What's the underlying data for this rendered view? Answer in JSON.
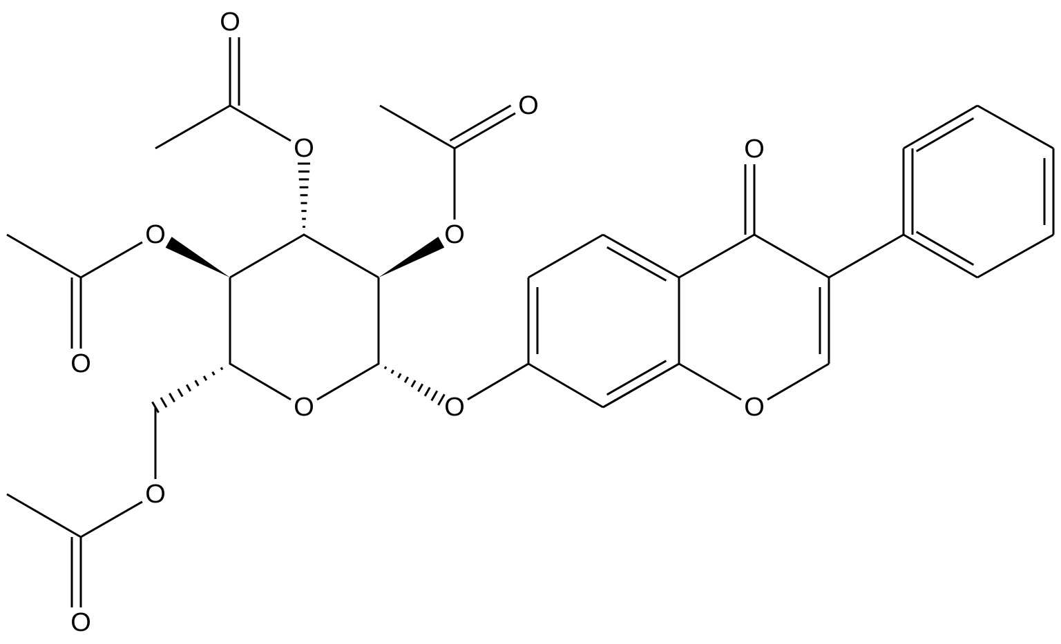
{
  "atoms": [
    {
      "label": "O"
    },
    {
      "label": "O"
    },
    {
      "label": "O"
    },
    {
      "label": "O"
    },
    {
      "label": "O"
    },
    {
      "label": "O"
    },
    {
      "label": "O"
    },
    {
      "label": "O"
    },
    {
      "label": "O"
    },
    {
      "label": "O"
    },
    {
      "label": "O"
    },
    {
      "label": "O"
    }
  ]
}
